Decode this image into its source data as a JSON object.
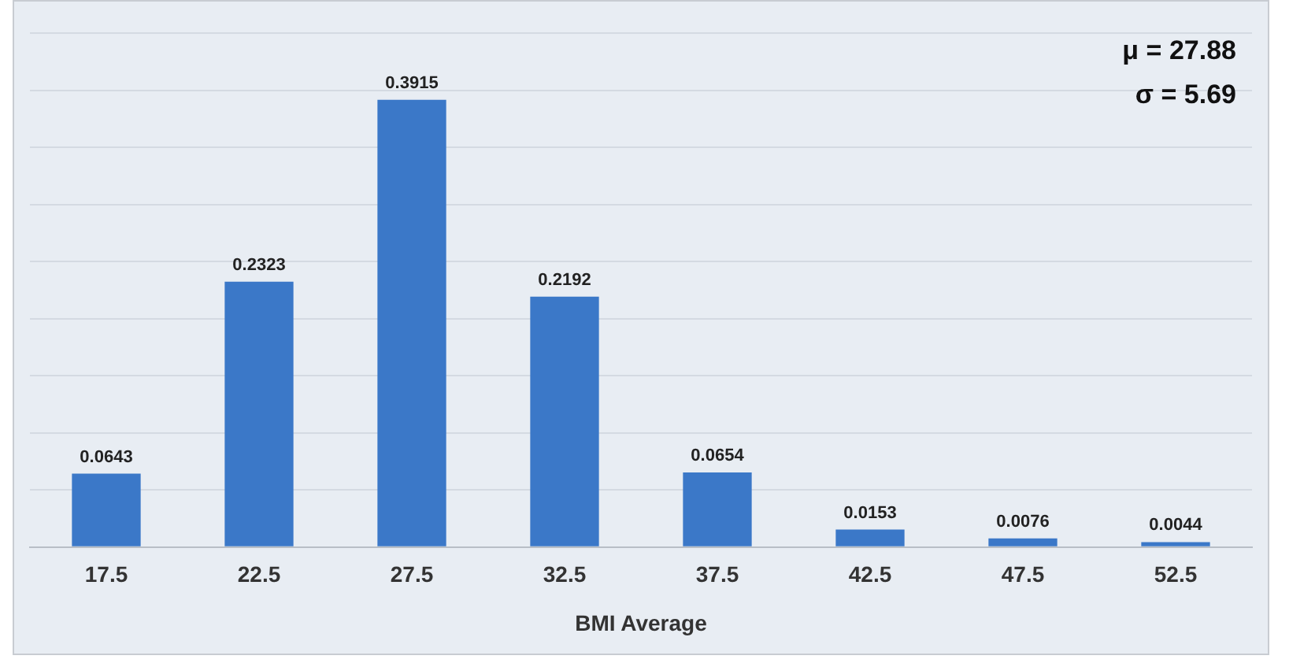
{
  "chart_data": {
    "type": "bar",
    "xlabel": "BMI Average",
    "categories": [
      "17.5",
      "22.5",
      "27.5",
      "32.5",
      "37.5",
      "42.5",
      "47.5",
      "52.5"
    ],
    "values": [
      0.0643,
      0.2323,
      0.3915,
      0.2192,
      0.0654,
      0.0153,
      0.0076,
      0.0044
    ],
    "color": "#3b78c8",
    "ylim": [
      0,
      0.45
    ],
    "yticks": [
      {
        "value": 0,
        "label": null
      },
      {
        "value": 0.05,
        "label": null
      },
      {
        "value": 0.1,
        "label": null
      },
      {
        "value": 0.15,
        "label": null
      },
      {
        "value": 0.2,
        "label": null
      },
      {
        "value": 0.25,
        "label": null
      },
      {
        "value": 0.3,
        "label": null
      },
      {
        "value": 0.35,
        "label": null
      },
      {
        "value": 0.4,
        "label": null
      },
      {
        "value": 0.45,
        "label": null
      }
    ],
    "tick_labels": "x",
    "grid": "y",
    "legend": false,
    "data_labels": true,
    "annotations": [
      "μ = 27.88",
      "σ = 5.69"
    ]
  }
}
